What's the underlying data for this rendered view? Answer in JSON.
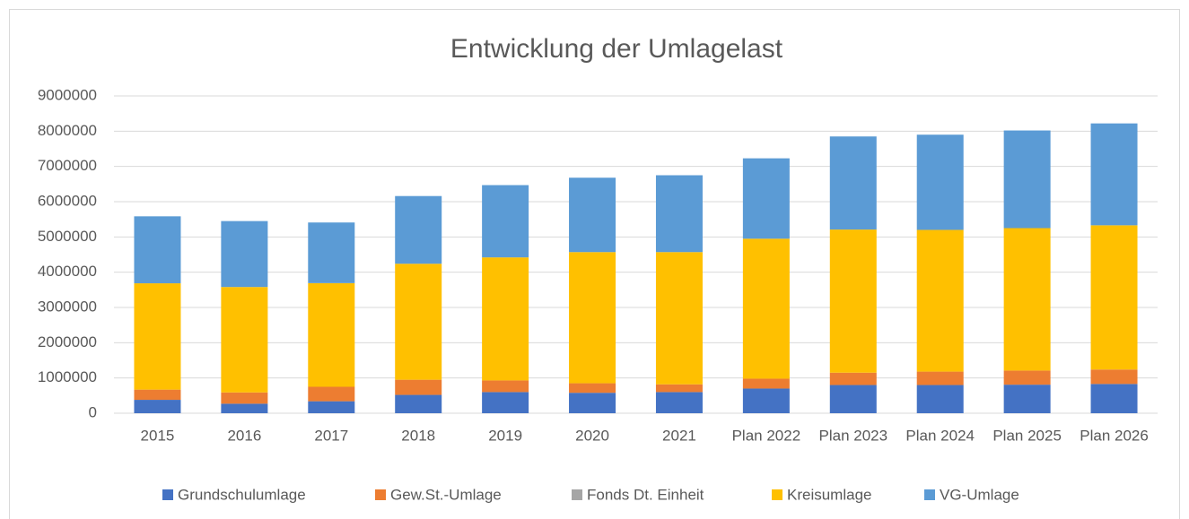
{
  "chart_data": {
    "type": "stacked_bar",
    "title": "Entwicklung der Umlagelast",
    "categories": [
      "2015",
      "2016",
      "2017",
      "2018",
      "2019",
      "2020",
      "2021",
      "Plan 2022",
      "Plan 2023",
      "Plan 2024",
      "Plan 2025",
      "Plan 2026"
    ],
    "series": [
      {
        "name": "Grundschulumlage",
        "color": "#4472c4",
        "values": [
          380000,
          270000,
          340000,
          520000,
          600000,
          580000,
          600000,
          700000,
          800000,
          800000,
          810000,
          830000
        ]
      },
      {
        "name": "Gew.St.-Umlage",
        "color": "#ed7d31",
        "values": [
          290000,
          320000,
          410000,
          430000,
          330000,
          270000,
          220000,
          280000,
          350000,
          380000,
          400000,
          410000
        ]
      },
      {
        "name": "Fonds Dt. Einheit",
        "color": "#a5a5a5",
        "values": [
          0,
          0,
          0,
          0,
          0,
          0,
          0,
          0,
          0,
          0,
          0,
          0
        ]
      },
      {
        "name": "Kreisumlage",
        "color": "#ffc000",
        "values": [
          3015000,
          2990000,
          2940000,
          3290000,
          3490000,
          3720000,
          3750000,
          3970000,
          4060000,
          4020000,
          4040000,
          4090000
        ]
      },
      {
        "name": "VG-Umlage",
        "color": "#5b9bd5",
        "values": [
          1900000,
          1870000,
          1720000,
          1920000,
          2050000,
          2110000,
          2180000,
          2280000,
          2640000,
          2700000,
          2770000,
          2890000
        ]
      }
    ],
    "ylim": [
      0,
      9000000
    ],
    "yticks": [
      0,
      1000000,
      2000000,
      3000000,
      4000000,
      5000000,
      6000000,
      7000000,
      8000000,
      9000000
    ],
    "grid": true,
    "legend": "bottom"
  }
}
